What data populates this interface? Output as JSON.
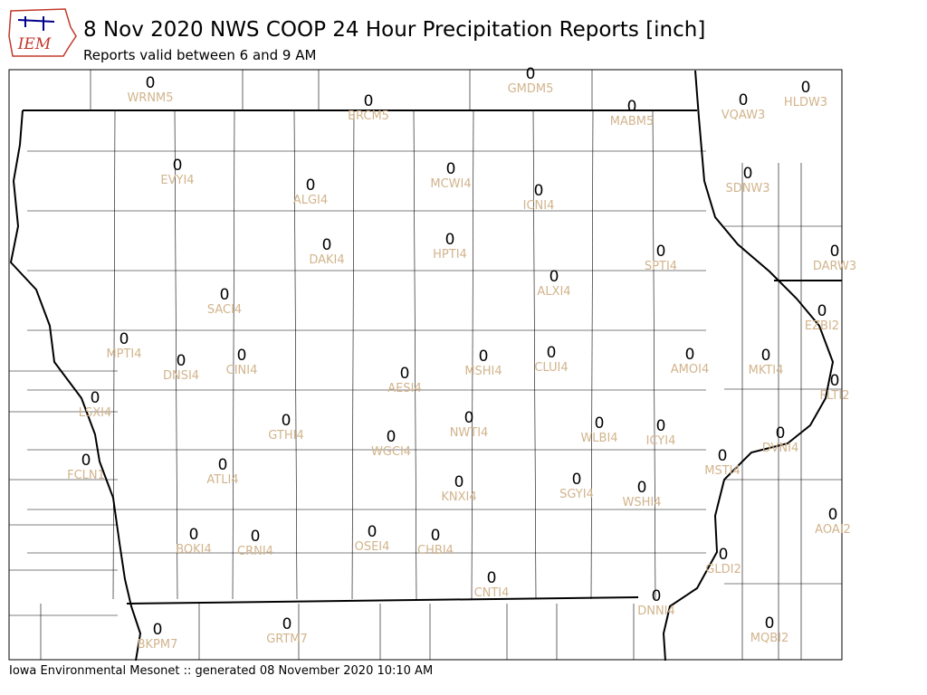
{
  "header": {
    "logo": "IEM",
    "title": "8 Nov 2020 NWS COOP 24 Hour Precipitation Reports [inch]",
    "subtitle": "Reports valid between 6 and 9 AM"
  },
  "footer": "Iowa Environmental Mesonet :: generated 08 November 2020 10:10 AM",
  "stations": [
    {
      "id": "WRNM5",
      "value": 0
    },
    {
      "id": "GMDM5",
      "value": 0
    },
    {
      "id": "BRCM5",
      "value": 0
    },
    {
      "id": "MABM5",
      "value": 0
    },
    {
      "id": "HLDW3",
      "value": 0
    },
    {
      "id": "VQAW3",
      "value": 0
    },
    {
      "id": "EVYI4",
      "value": 0
    },
    {
      "id": "ALGI4",
      "value": 0
    },
    {
      "id": "MCWI4",
      "value": 0
    },
    {
      "id": "ICNI4",
      "value": 0
    },
    {
      "id": "SDNW3",
      "value": 0
    },
    {
      "id": "HPTI4",
      "value": 0
    },
    {
      "id": "DAKI4",
      "value": 0
    },
    {
      "id": "SPTI4",
      "value": 0
    },
    {
      "id": "DARW3",
      "value": 0
    },
    {
      "id": "ALXI4",
      "value": 0
    },
    {
      "id": "SACI4",
      "value": 0
    },
    {
      "id": "EZBI2",
      "value": 0
    },
    {
      "id": "MPTI4",
      "value": 0
    },
    {
      "id": "CLUI4",
      "value": 0
    },
    {
      "id": "AMOI4",
      "value": 0
    },
    {
      "id": "MKTI4",
      "value": 0
    },
    {
      "id": "DNSI4",
      "value": 0
    },
    {
      "id": "CINI4",
      "value": 0
    },
    {
      "id": "MSHI4",
      "value": 0
    },
    {
      "id": "AESI4",
      "value": 0
    },
    {
      "id": "FLTI2",
      "value": 0
    },
    {
      "id": "LSXI4",
      "value": 0
    },
    {
      "id": "GTHI4",
      "value": 0
    },
    {
      "id": "NWTI4",
      "value": 0
    },
    {
      "id": "WLBI4",
      "value": 0
    },
    {
      "id": "ICYI4",
      "value": 0
    },
    {
      "id": "DVNI4",
      "value": 0
    },
    {
      "id": "WGCI4",
      "value": 0
    },
    {
      "id": "MSTI4",
      "value": 0
    },
    {
      "id": "FCLN1",
      "value": 0
    },
    {
      "id": "ATLI4",
      "value": 0
    },
    {
      "id": "KNXI4",
      "value": 0
    },
    {
      "id": "SGYI4",
      "value": 0
    },
    {
      "id": "WSHI4",
      "value": 0
    },
    {
      "id": "AOAI2",
      "value": 0
    },
    {
      "id": "BOKI4",
      "value": 0
    },
    {
      "id": "CRNI4",
      "value": 0
    },
    {
      "id": "OSEI4",
      "value": 0
    },
    {
      "id": "CHBI4",
      "value": 0
    },
    {
      "id": "GLDI2",
      "value": 0
    },
    {
      "id": "CNTI4",
      "value": 0
    },
    {
      "id": "DNNI4",
      "value": 0
    },
    {
      "id": "MQBI2",
      "value": 0
    },
    {
      "id": "BKPM7",
      "value": 0
    },
    {
      "id": "GRTM7",
      "value": 0
    }
  ]
}
